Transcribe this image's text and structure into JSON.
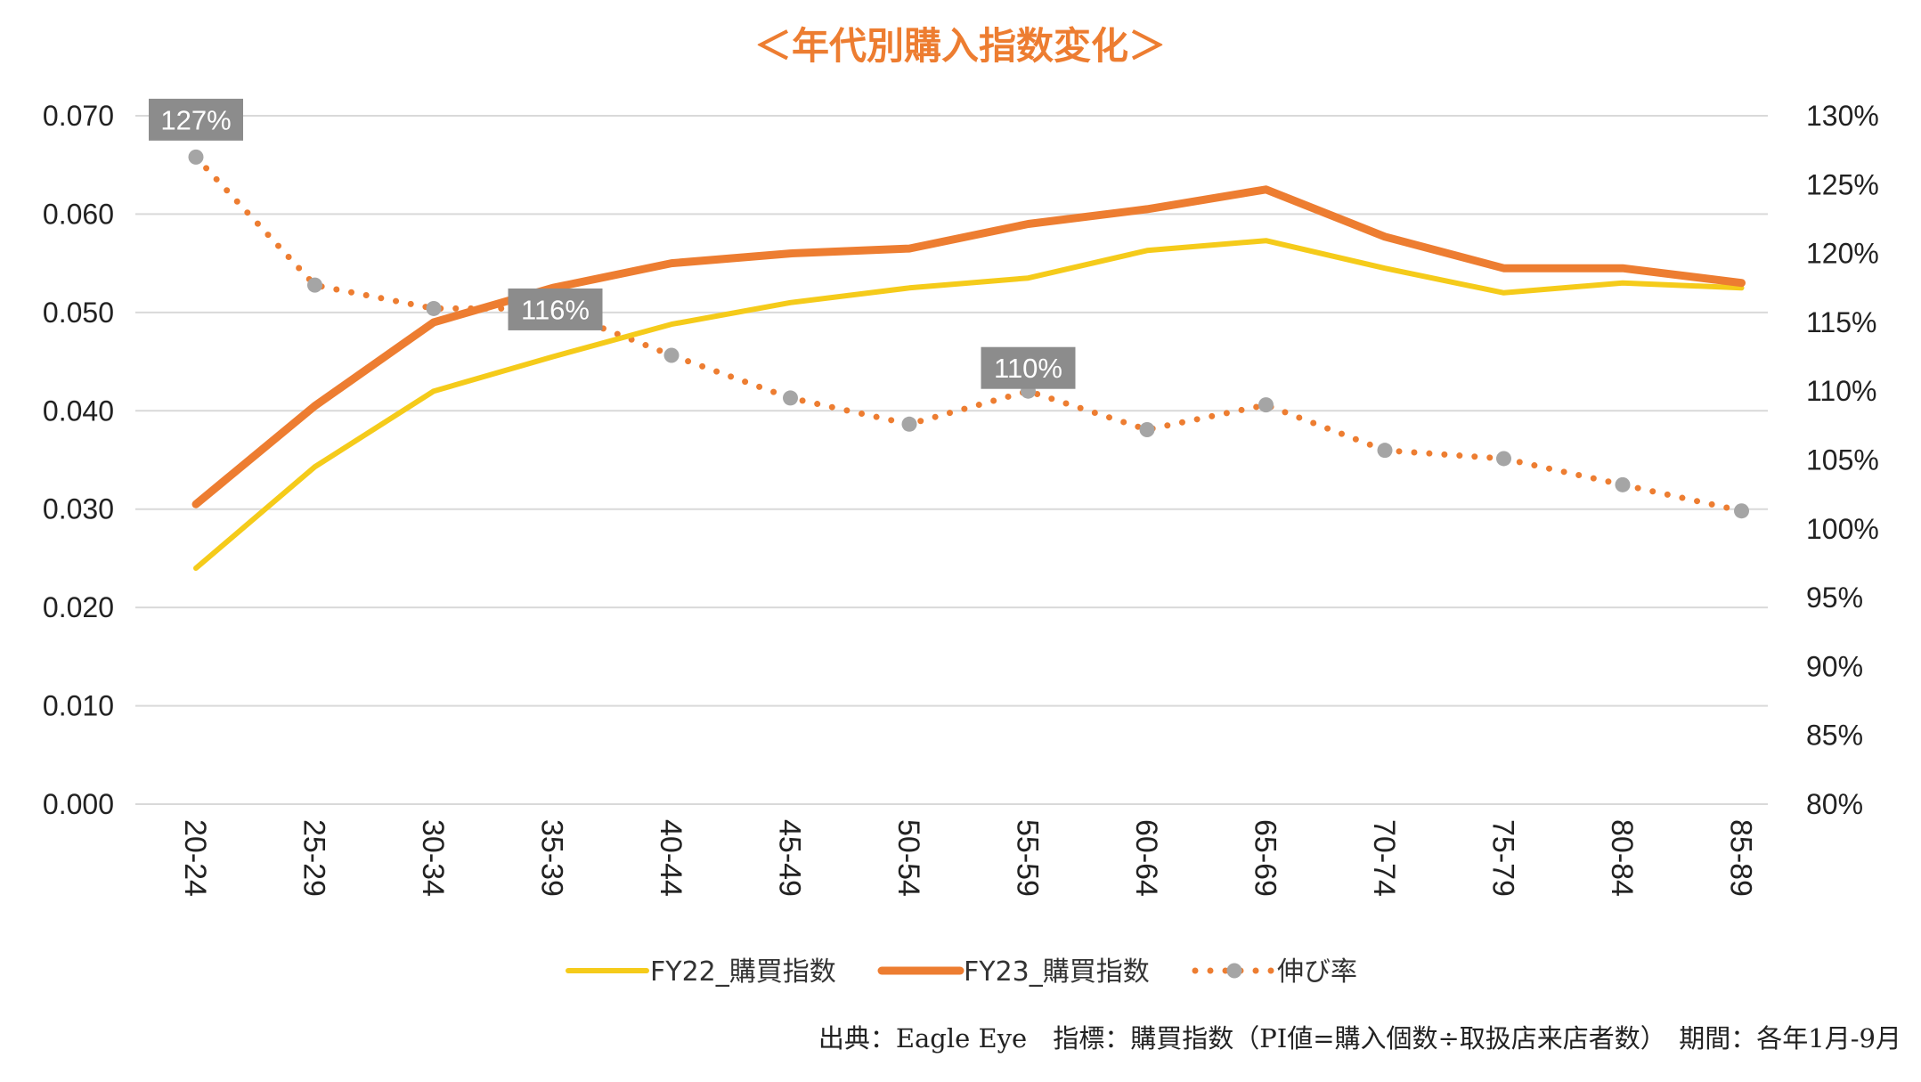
{
  "chart_data": {
    "type": "line",
    "title": "＜年代別購入指数変化＞",
    "categories": [
      "20-24",
      "25-29",
      "30-34",
      "35-39",
      "40-44",
      "45-49",
      "50-54",
      "55-59",
      "60-64",
      "65-69",
      "70-74",
      "75-79",
      "80-84",
      "85-89"
    ],
    "y_left": {
      "ylim": [
        0,
        0.07
      ],
      "ticks": [
        "0.000",
        "0.010",
        "0.020",
        "0.030",
        "0.040",
        "0.050",
        "0.060",
        "0.070"
      ]
    },
    "y_right": {
      "ylim": [
        80,
        130
      ],
      "ticks": [
        "80%",
        "85%",
        "90%",
        "95%",
        "100%",
        "105%",
        "110%",
        "115%",
        "120%",
        "125%",
        "130%"
      ]
    },
    "grid": true,
    "legend_position": "bottom",
    "series": [
      {
        "name": "FY22_購買指数",
        "axis": "left",
        "style": "solid",
        "color": "#F5CB1A",
        "values": [
          0.024,
          0.0343,
          0.042,
          0.0455,
          0.0488,
          0.051,
          0.0525,
          0.0535,
          0.0563,
          0.0573,
          0.0545,
          0.052,
          0.053,
          0.0525
        ]
      },
      {
        "name": "FY23_購買指数",
        "axis": "left",
        "style": "solid",
        "color": "#ED7D31",
        "values": [
          0.0305,
          0.0405,
          0.049,
          0.0525,
          0.055,
          0.056,
          0.0565,
          0.059,
          0.0605,
          0.0625,
          0.0577,
          0.0545,
          0.0545,
          0.053
        ]
      },
      {
        "name": "伸び率",
        "axis": "right",
        "style": "dotted",
        "color": "#ED7D31",
        "marker_color": "#A5A5A5",
        "values": [
          127,
          117.7,
          116,
          116,
          112.6,
          109.5,
          107.6,
          110,
          107.2,
          109,
          105.7,
          105.1,
          103.2,
          101.3
        ]
      }
    ],
    "data_labels": [
      {
        "series": 2,
        "index": 0,
        "text": "127%"
      },
      {
        "series": 2,
        "index": 3,
        "text": "116%"
      },
      {
        "series": 2,
        "index": 7,
        "text": "110%"
      }
    ]
  },
  "footer": {
    "source": "出典：Eagle Eye　指標：購買指数（PI値=購入個数÷取扱店来店者数）　期間：各年1月-9月"
  },
  "colors": {
    "title": "#ED7D31",
    "grid": "#D9D9D9",
    "label_box": "#8C8C8C"
  }
}
